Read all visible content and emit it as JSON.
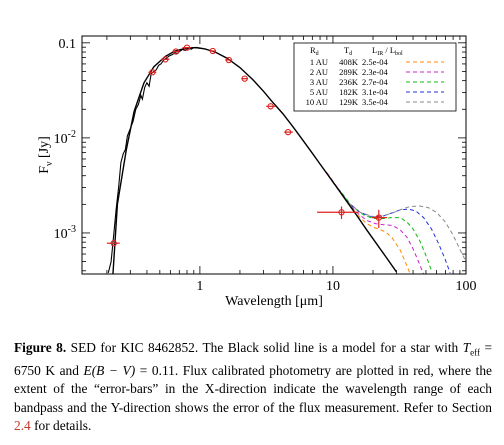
{
  "figure": {
    "chart_data": {
      "type": "line",
      "xscale": "log",
      "yscale": "log",
      "xlim": [
        0.13,
        100
      ],
      "ylim": [
        0.00037,
        0.118
      ],
      "xlabel": "Wavelength [μm]",
      "ylabel": "F_ν [Jy]",
      "x_ticks": [
        {
          "value": 1,
          "label": "1"
        },
        {
          "value": 10,
          "label": "10"
        },
        {
          "value": 100,
          "label": "100"
        }
      ],
      "y_ticks": [
        {
          "value": 0.001,
          "base": "10",
          "exp": "-3"
        },
        {
          "value": 0.01,
          "base": "10",
          "exp": "-2"
        },
        {
          "value": 0.1,
          "base": "0.1",
          "exp": ""
        }
      ],
      "model_curve": {
        "color": "#000000",
        "points": [
          [
            0.22,
            0.0003
          ],
          [
            0.24,
            0.002
          ],
          [
            0.28,
            0.0075
          ],
          [
            0.32,
            0.019
          ],
          [
            0.38,
            0.038
          ],
          [
            0.45,
            0.056
          ],
          [
            0.55,
            0.072
          ],
          [
            0.65,
            0.082
          ],
          [
            0.8,
            0.0885
          ],
          [
            0.95,
            0.089
          ],
          [
            1.1,
            0.086
          ],
          [
            1.3,
            0.08
          ],
          [
            1.6,
            0.069
          ],
          [
            2.0,
            0.055
          ],
          [
            2.5,
            0.041
          ],
          [
            3.0,
            0.031
          ],
          [
            3.5,
            0.024
          ],
          [
            4.2,
            0.018
          ],
          [
            5,
            0.0131
          ],
          [
            6,
            0.0093
          ],
          [
            7,
            0.0069
          ],
          [
            8,
            0.0053
          ],
          [
            9.5,
            0.0038
          ],
          [
            11,
            0.00285
          ],
          [
            13,
            0.00205
          ],
          [
            15,
            0.00155
          ],
          [
            18,
            0.00107
          ],
          [
            21,
            0.00079
          ],
          [
            25,
            0.00056
          ],
          [
            30,
            0.00039
          ]
        ]
      },
      "spectrum": {
        "color": "#000000",
        "points": [
          [
            0.205,
            0.00038
          ],
          [
            0.215,
            0.0005
          ],
          [
            0.225,
            0.00095
          ],
          [
            0.235,
            0.0018
          ],
          [
            0.245,
            0.003
          ],
          [
            0.255,
            0.0055
          ],
          [
            0.265,
            0.0068
          ],
          [
            0.275,
            0.0075
          ],
          [
            0.285,
            0.0105
          ],
          [
            0.3,
            0.0125
          ],
          [
            0.315,
            0.015
          ],
          [
            0.33,
            0.02
          ],
          [
            0.345,
            0.0225
          ],
          [
            0.36,
            0.028
          ],
          [
            0.37,
            0.0255
          ],
          [
            0.385,
            0.034
          ],
          [
            0.4,
            0.038
          ],
          [
            0.415,
            0.035
          ],
          [
            0.43,
            0.047
          ],
          [
            0.45,
            0.05
          ],
          [
            0.47,
            0.052
          ],
          [
            0.49,
            0.058
          ],
          [
            0.51,
            0.06
          ],
          [
            0.535,
            0.066
          ],
          [
            0.56,
            0.069
          ],
          [
            0.59,
            0.073
          ],
          [
            0.62,
            0.075
          ],
          [
            0.65,
            0.079
          ],
          [
            0.68,
            0.077
          ],
          [
            0.7,
            0.081
          ],
          [
            0.74,
            0.085
          ],
          [
            0.78,
            0.083
          ],
          [
            0.82,
            0.088
          ],
          [
            0.86,
            0.086
          ],
          [
            0.9,
            0.089
          ],
          [
            0.95,
            0.0885
          ],
          [
            1.0,
            0.0875
          ],
          [
            1.05,
            0.087
          ]
        ]
      },
      "photometry": {
        "color": "#dd2222",
        "points": [
          {
            "x": 0.225,
            "y": 0.00078,
            "xerr": [
              0.2,
              0.25
            ]
          },
          {
            "x": 0.44,
            "y": 0.049,
            "xerr": [
              0.41,
              0.47
            ]
          },
          {
            "x": 0.55,
            "y": 0.067,
            "xerr": [
              0.51,
              0.59
            ]
          },
          {
            "x": 0.66,
            "y": 0.081,
            "xerr": [
              0.62,
              0.7
            ]
          },
          {
            "x": 0.8,
            "y": 0.089,
            "xerr": [
              0.74,
              0.86
            ]
          },
          {
            "x": 1.25,
            "y": 0.082,
            "xerr": [
              1.18,
              1.32
            ]
          },
          {
            "x": 1.65,
            "y": 0.066,
            "xerr": [
              1.55,
              1.75
            ]
          },
          {
            "x": 2.17,
            "y": 0.042,
            "xerr": [
              2.05,
              2.3
            ]
          },
          {
            "x": 3.4,
            "y": 0.0215,
            "xerr": [
              3.15,
              3.7
            ]
          },
          {
            "x": 4.6,
            "y": 0.0115,
            "xerr": [
              4.3,
              5.0
            ]
          },
          {
            "x": 11.6,
            "y": 0.00165,
            "xerr": [
              7.6,
              15.6
            ],
            "yerr": [
              0.0014,
              0.0019
            ]
          },
          {
            "x": 22.1,
            "y": 0.00145,
            "xerr": [
              19.5,
              25.5
            ],
            "yerr": [
              0.00113,
              0.00175
            ]
          }
        ]
      },
      "series": [
        {
          "Rd": "1 AU",
          "Td": "408K",
          "ratio": "2.5e-04",
          "color": "#ff8800",
          "points": [
            [
              8,
              0.0053
            ],
            [
              10,
              0.0034
            ],
            [
              12,
              0.0024
            ],
            [
              14,
              0.0018
            ],
            [
              16,
              0.00145
            ],
            [
              18,
              0.00125
            ],
            [
              20,
              0.00115
            ],
            [
              22,
              0.0011
            ],
            [
              25,
              0.00102
            ],
            [
              28,
              0.00088
            ],
            [
              32,
              0.00066
            ],
            [
              36,
              0.00045
            ],
            [
              40,
              0.00031
            ]
          ]
        },
        {
          "Rd": "2 AU",
          "Td": "289K",
          "ratio": "2.3e-04",
          "color": "#cc22cc",
          "points": [
            [
              9,
              0.0043
            ],
            [
              11,
              0.0029
            ],
            [
              13,
              0.0021
            ],
            [
              15,
              0.00165
            ],
            [
              18,
              0.00135
            ],
            [
              21,
              0.00125
            ],
            [
              24,
              0.00122
            ],
            [
              28,
              0.0012
            ],
            [
              32,
              0.00108
            ],
            [
              36,
              0.0009
            ],
            [
              40,
              0.00068
            ],
            [
              45,
              0.00046
            ],
            [
              50,
              0.00032
            ]
          ]
        },
        {
          "Rd": "3 AU",
          "Td": "236K",
          "ratio": "2.7e-04",
          "color": "#11bb11",
          "points": [
            [
              10,
              0.0034
            ],
            [
              12,
              0.0025
            ],
            [
              14,
              0.0019
            ],
            [
              17,
              0.00155
            ],
            [
              20,
              0.00142
            ],
            [
              24,
              0.00142
            ],
            [
              28,
              0.00145
            ],
            [
              32,
              0.00145
            ],
            [
              36,
              0.0013
            ],
            [
              40,
              0.0011
            ],
            [
              45,
              0.00082
            ],
            [
              50,
              0.00058
            ],
            [
              55,
              0.0004
            ]
          ]
        },
        {
          "Rd": "5 AU",
          "Td": "182K",
          "ratio": "3.1e-04",
          "color": "#2233dd",
          "points": [
            [
              11,
              0.0029
            ],
            [
              13,
              0.0021
            ],
            [
              16,
              0.00165
            ],
            [
              19,
              0.0015
            ],
            [
              23,
              0.00148
            ],
            [
              27,
              0.0016
            ],
            [
              32,
              0.00175
            ],
            [
              37,
              0.00178
            ],
            [
              42,
              0.0017
            ],
            [
              48,
              0.00145
            ],
            [
              55,
              0.0011
            ],
            [
              62,
              0.00078
            ],
            [
              70,
              0.00052
            ],
            [
              76,
              0.00038
            ]
          ]
        },
        {
          "Rd": "10 AU",
          "Td": "129K",
          "ratio": "3.5e-04",
          "color": "#888888",
          "points": [
            [
              13,
              0.0021
            ],
            [
              16,
              0.00165
            ],
            [
              20,
              0.00148
            ],
            [
              24,
              0.00152
            ],
            [
              28,
              0.00162
            ],
            [
              33,
              0.00178
            ],
            [
              38,
              0.0019
            ],
            [
              45,
              0.00192
            ],
            [
              52,
              0.00185
            ],
            [
              60,
              0.00165
            ],
            [
              70,
              0.0013
            ],
            [
              80,
              0.00095
            ],
            [
              92,
              0.00063
            ],
            [
              100,
              0.0005
            ]
          ]
        }
      ],
      "legend": {
        "position": "top-right",
        "headers": [
          "R_d",
          "T_d",
          "L_IR / L_bol"
        ],
        "header_parts": {
          "rd_main": "R",
          "rd_sub": "d",
          "td_main": "T",
          "td_sub": "d",
          "l_main": "L",
          "l_sub": "IR",
          "sep": " / ",
          "l2_main": "L",
          "l2_sub": "bol"
        }
      }
    }
  },
  "caption": {
    "label": "Figure 8.",
    "part1": " SED for KIC 8462852. The Black solid line is a model for a star with ",
    "teff_var": "T",
    "teff_sub": "eff",
    "teff_val": " = 6750 K and ",
    "ebv_expr": "E(B − V)",
    "ebv_val": " = 0.11. Flux calibrated photometry are plotted in red, where the extent of the “error-bars” in the X-direction indicate the wavelength range of each bandpass and the Y-direction shows the error of the flux measurement. Refer to Section ",
    "section_ref": "2.4",
    "part_end": " for details."
  }
}
